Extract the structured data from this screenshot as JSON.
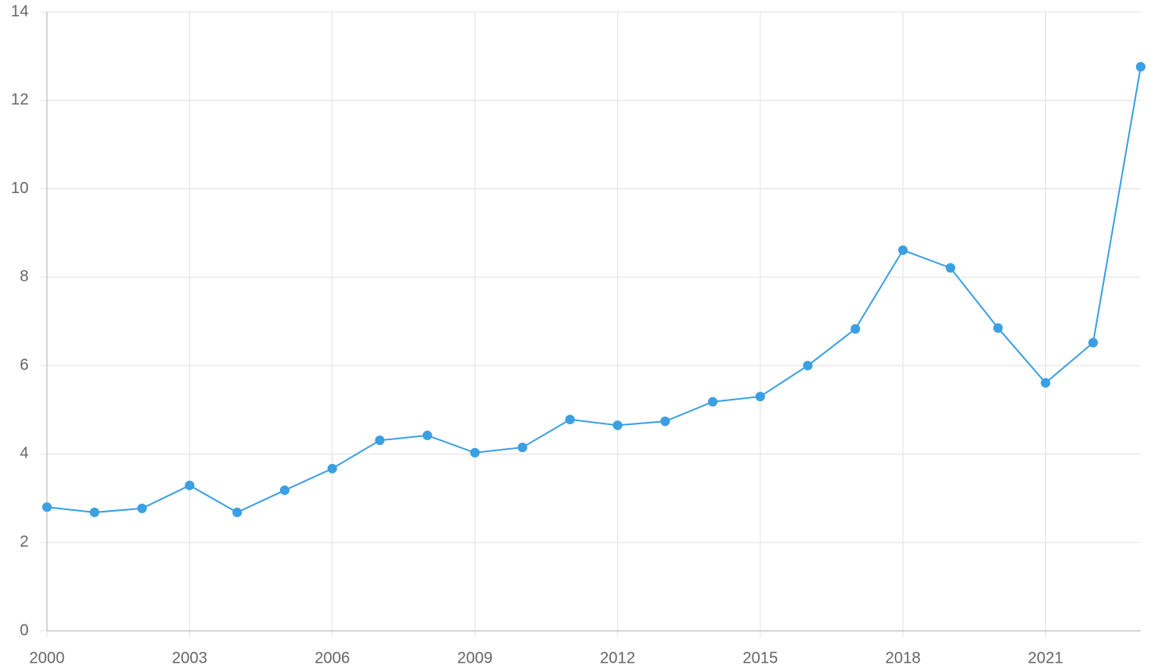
{
  "chart_data": {
    "type": "line",
    "x": [
      2000,
      2001,
      2002,
      2003,
      2004,
      2005,
      2006,
      2007,
      2008,
      2009,
      2010,
      2011,
      2012,
      2013,
      2014,
      2015,
      2016,
      2017,
      2018,
      2019,
      2020,
      2021,
      2022,
      2023
    ],
    "values": [
      2.8,
      2.68,
      2.77,
      3.29,
      2.68,
      3.18,
      3.67,
      4.31,
      4.42,
      4.03,
      4.15,
      4.78,
      4.65,
      4.74,
      5.18,
      5.3,
      6.0,
      6.83,
      8.61,
      8.21,
      6.85,
      5.61,
      6.52,
      12.76
    ],
    "color": "#3b9fe3",
    "xlim": [
      2000,
      2023
    ],
    "xticks": [
      2000,
      2003,
      2006,
      2009,
      2012,
      2015,
      2018,
      2021
    ],
    "ylim": [
      0,
      14
    ],
    "yticks": [
      0,
      2,
      4,
      6,
      8,
      10,
      12,
      14
    ],
    "grid": true
  }
}
